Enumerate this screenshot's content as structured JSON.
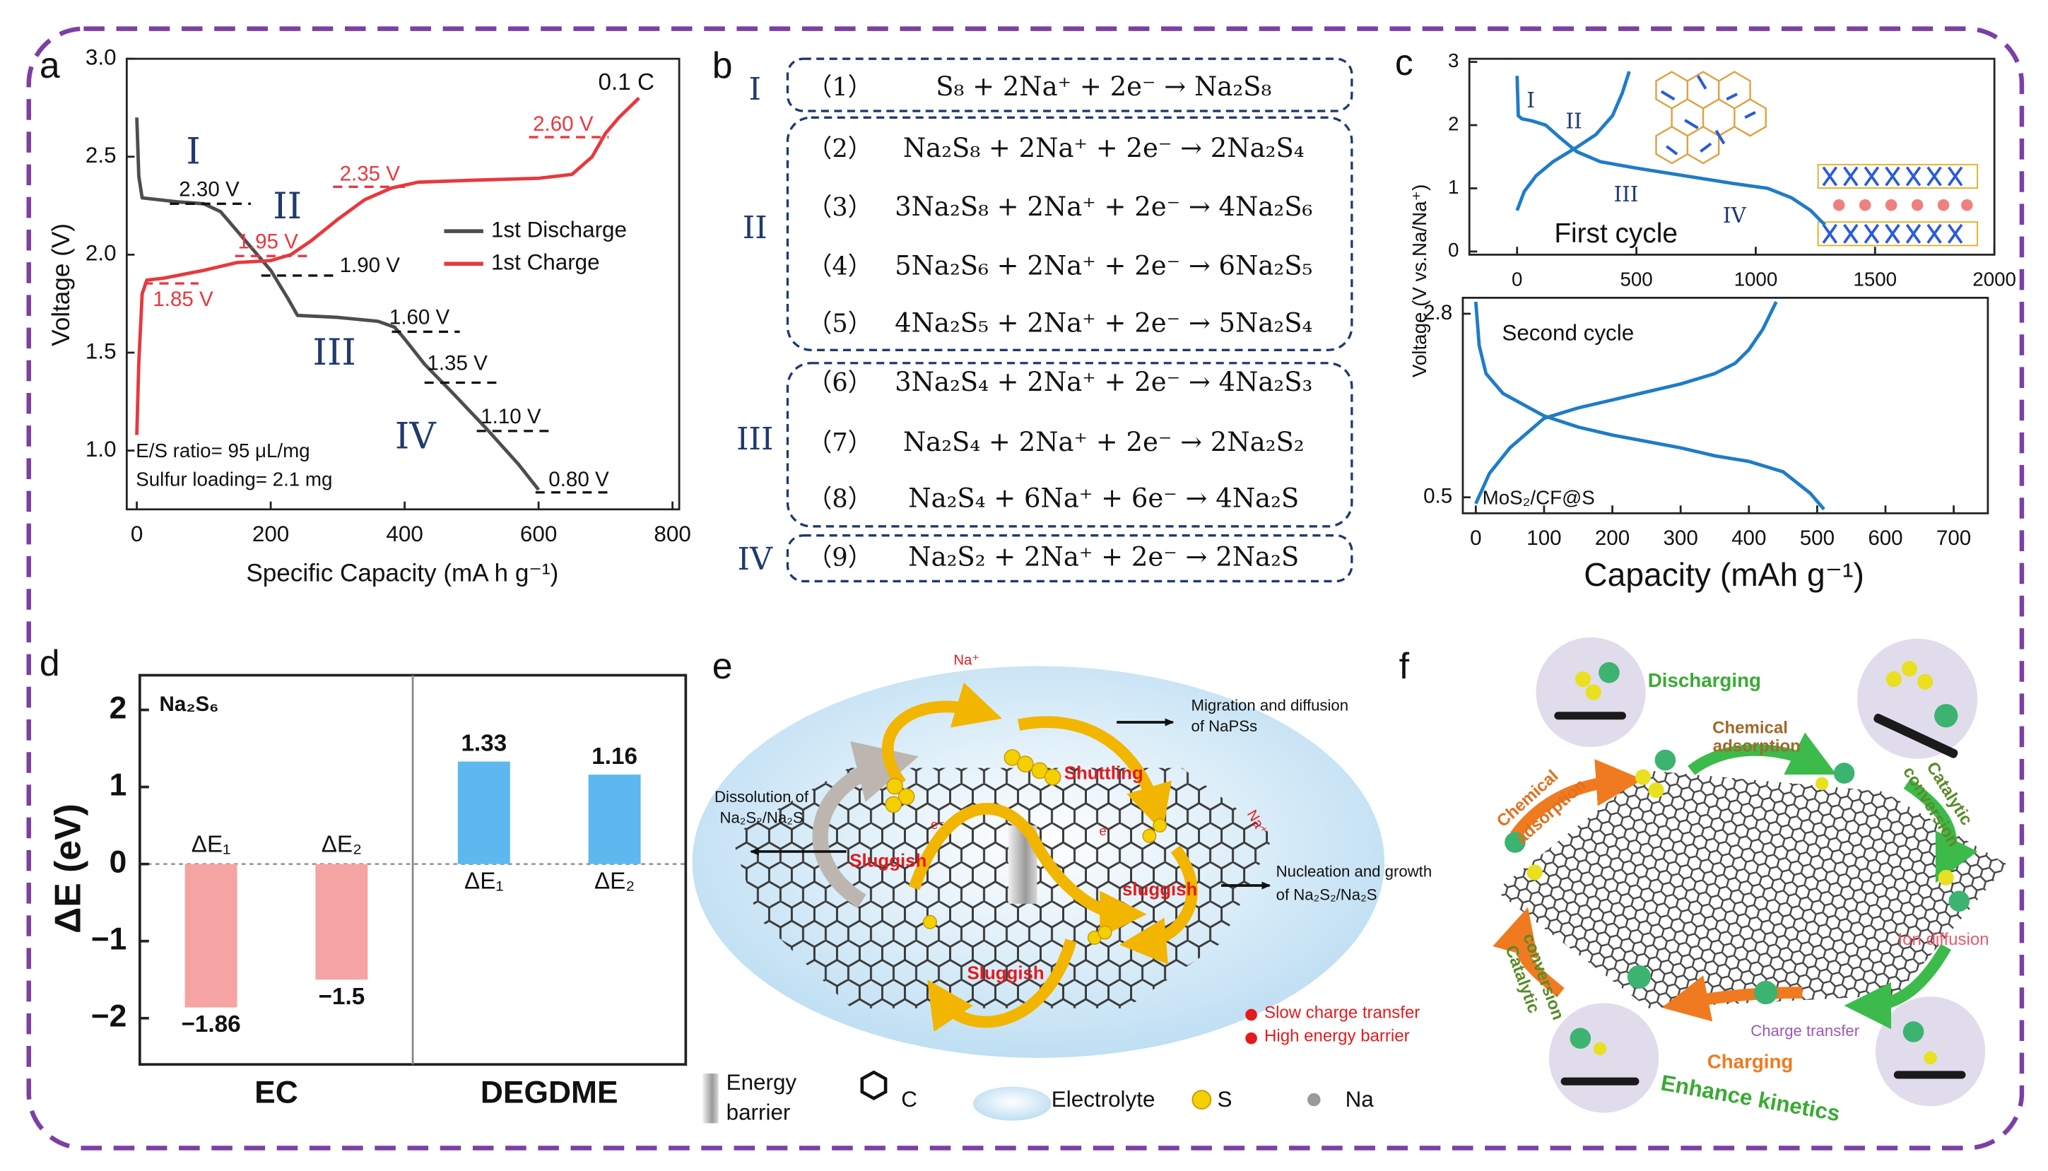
{
  "panel_labels": [
    "a",
    "b",
    "c",
    "d",
    "e",
    "f"
  ],
  "chart_data": [
    {
      "type": "line",
      "x_label": "Specific Capacity (mA h g⁻¹)",
      "y_label": "Voltage (V)",
      "xlim": [
        -15,
        810
      ],
      "ylim": [
        0.7,
        3.0
      ],
      "xticks": [
        0,
        200,
        400,
        600,
        800
      ],
      "yticks": [
        {
          "value": 1,
          "label": "1.0"
        },
        1.5,
        {
          "value": 2,
          "label": "2.0"
        },
        2.5,
        {
          "value": 3,
          "label": "3.0"
        }
      ],
      "legend": "right",
      "series": [
        {
          "name": "1st Discharge",
          "color": "#4d4d4d",
          "x": [
            0,
            3,
            8,
            60,
            100,
            125,
            150,
            175,
            200,
            225,
            240,
            300,
            360,
            385,
            400,
            430,
            470,
            520,
            570,
            600
          ],
          "values": [
            2.7,
            2.4,
            2.29,
            2.27,
            2.26,
            2.22,
            2.12,
            2.02,
            1.92,
            1.78,
            1.69,
            1.68,
            1.66,
            1.63,
            1.57,
            1.44,
            1.3,
            1.12,
            0.93,
            0.8
          ]
        },
        {
          "name": "1st Charge",
          "color": "#e8383d",
          "x": [
            0,
            3,
            8,
            15,
            40,
            100,
            150,
            200,
            230,
            260,
            300,
            340,
            380,
            420,
            500,
            600,
            650,
            680,
            700,
            720,
            750
          ],
          "values": [
            1.08,
            1.45,
            1.8,
            1.87,
            1.88,
            1.92,
            1.96,
            1.97,
            2.0,
            2.07,
            2.18,
            2.28,
            2.34,
            2.37,
            2.38,
            2.39,
            2.41,
            2.5,
            2.62,
            2.7,
            2.8
          ]
        }
      ],
      "annotations": [
        "0.1 C",
        "I",
        "II",
        "III",
        "IV",
        "2.30 V",
        "1.95 V",
        "1.90 V",
        "2.35 V",
        "2.60 V",
        "1.85 V",
        "1.60 V",
        "1.35 V",
        "1.10 V",
        "0.80 V",
        "E/S ratio= 95 μL/mg",
        "Sulfur loading= 2.1 mg"
      ]
    },
    {
      "type": "line",
      "y_label": "Voltage (V vs.Na/Na⁺)",
      "xlim": [
        -200,
        2000
      ],
      "ylim": [
        -0.05,
        3.05
      ],
      "xticks": [
        0,
        500,
        1000,
        1500,
        2000
      ],
      "yticks": [
        0,
        1,
        2,
        3
      ],
      "series": [
        {
          "color": "#1f7cc6",
          "x": [
            0,
            5,
            20,
            60,
            120,
            180,
            250,
            350,
            500,
            700,
            900,
            1050,
            1150,
            1230,
            1290
          ],
          "values": [
            2.78,
            2.15,
            2.1,
            2.07,
            2.0,
            1.8,
            1.58,
            1.42,
            1.32,
            1.2,
            1.08,
            1.0,
            0.85,
            0.65,
            0.42
          ]
        },
        {
          "color": "#1f7cc6",
          "x": [
            0,
            30,
            80,
            150,
            250,
            330,
            400,
            440,
            470
          ],
          "values": [
            0.65,
            0.95,
            1.2,
            1.42,
            1.65,
            1.85,
            2.15,
            2.5,
            2.85
          ]
        }
      ],
      "annotations": [
        "I",
        "II",
        "III",
        "IV",
        "First cycle"
      ]
    },
    {
      "type": "line",
      "x_label": "Capacity (mAh g⁻¹)",
      "xlim": [
        -19,
        750
      ],
      "ylim": [
        0.3,
        3.0
      ],
      "xticks": [
        0,
        100,
        200,
        300,
        400,
        500,
        600,
        700
      ],
      "yticks": [
        0.5,
        2.8
      ],
      "series": [
        {
          "color": "#1f7cc6",
          "x": [
            0,
            5,
            15,
            40,
            100,
            150,
            200,
            250,
            300,
            350,
            400,
            450,
            490,
            510
          ],
          "values": [
            2.95,
            2.4,
            2.05,
            1.8,
            1.52,
            1.38,
            1.28,
            1.2,
            1.12,
            1.02,
            0.95,
            0.82,
            0.55,
            0.35
          ]
        },
        {
          "color": "#1f7cc6",
          "x": [
            0,
            20,
            50,
            100,
            150,
            200,
            250,
            300,
            350,
            380,
            400,
            420,
            440
          ],
          "values": [
            0.42,
            0.8,
            1.12,
            1.49,
            1.62,
            1.72,
            1.82,
            1.92,
            2.05,
            2.18,
            2.35,
            2.6,
            2.95
          ]
        }
      ],
      "annotations": [
        "Second cycle",
        "MoS₂/CF@S"
      ]
    },
    {
      "type": "bar",
      "title": "Na₂S₆",
      "y_label": "ΔE (eV)",
      "ylim": [
        -2.6,
        2.45
      ],
      "yticks": [
        {
          "value": -2,
          "label": "−2"
        },
        {
          "value": -1,
          "label": "−1"
        },
        0,
        1,
        2
      ],
      "categories": [
        "EC",
        "DEGDME"
      ],
      "category_colors": [
        "#f5a3a3",
        "#5cb8ef"
      ],
      "series": [
        {
          "name": "ΔE₁",
          "values": [
            -1.86,
            1.33
          ],
          "value_labels": [
            "−1.86",
            "1.33"
          ]
        },
        {
          "name": "ΔE₂",
          "values": [
            -1.5,
            1.16
          ],
          "value_labels": [
            "−1.5",
            "1.16"
          ]
        }
      ]
    }
  ],
  "equations": {
    "groups": [
      {
        "label": "I",
        "items": [
          {
            "num": "（1）",
            "eq": "S₈ + 2Na⁺ + 2e⁻ → Na₂S₈"
          }
        ]
      },
      {
        "label": "II",
        "items": [
          {
            "num": "（2）",
            "eq": "Na₂S₈ + 2Na⁺ + 2e⁻ → 2Na₂S₄"
          },
          {
            "num": "（3）",
            "eq": "3Na₂S₈ + 2Na⁺ + 2e⁻ → 4Na₂S₆"
          },
          {
            "num": "（4）",
            "eq": "5Na₂S₆ + 2Na⁺ + 2e⁻ → 6Na₂S₅"
          },
          {
            "num": "（5）",
            "eq": "4Na₂S₅ + 2Na⁺ + 2e⁻ → 5Na₂S₄"
          }
        ]
      },
      {
        "label": "III",
        "items": [
          {
            "num": "（6）",
            "eq": "3Na₂S₄ + 2Na⁺ + 2e⁻ → 4Na₂S₃"
          },
          {
            "num": "（7）",
            "eq": "Na₂S₄ + 2Na⁺ + 2e⁻ → 2Na₂S₂"
          },
          {
            "num": "（8）",
            "eq": "Na₂S₄ + 6Na⁺ + 6e⁻ → 4Na₂S"
          }
        ]
      },
      {
        "label": "IV",
        "items": [
          {
            "num": "（9）",
            "eq": "Na₂S₂ + 2Na⁺ + 2e⁻ → 2Na₂S"
          }
        ]
      }
    ]
  },
  "diagram_e": {
    "texts": [
      "Na⁺",
      "Migration and diffusion",
      "of NaPSs",
      "Dissolution of",
      "Na₂S₂/Na₂S",
      "Shuttling",
      "Sluggish",
      "sluggish",
      "Sluggish",
      "e⁻",
      "e⁻",
      "Na⁺",
      "Nucleation and growth",
      "of Na₂S₂/Na₂S",
      "Slow charge transfer",
      "High energy barrier"
    ],
    "legend": [
      "Energy",
      "barrier",
      "C",
      "Electrolyte",
      "S",
      "Na"
    ]
  },
  "diagram_f": {
    "texts": [
      "Discharging",
      "Chemical",
      "adsorption",
      "Chemical",
      "adsorption",
      "Catalytic",
      "conversion",
      "Ion diffusion",
      "Catalytic",
      "conversion",
      "Charge transfer",
      "Charging",
      "Enhance kinetics"
    ]
  }
}
